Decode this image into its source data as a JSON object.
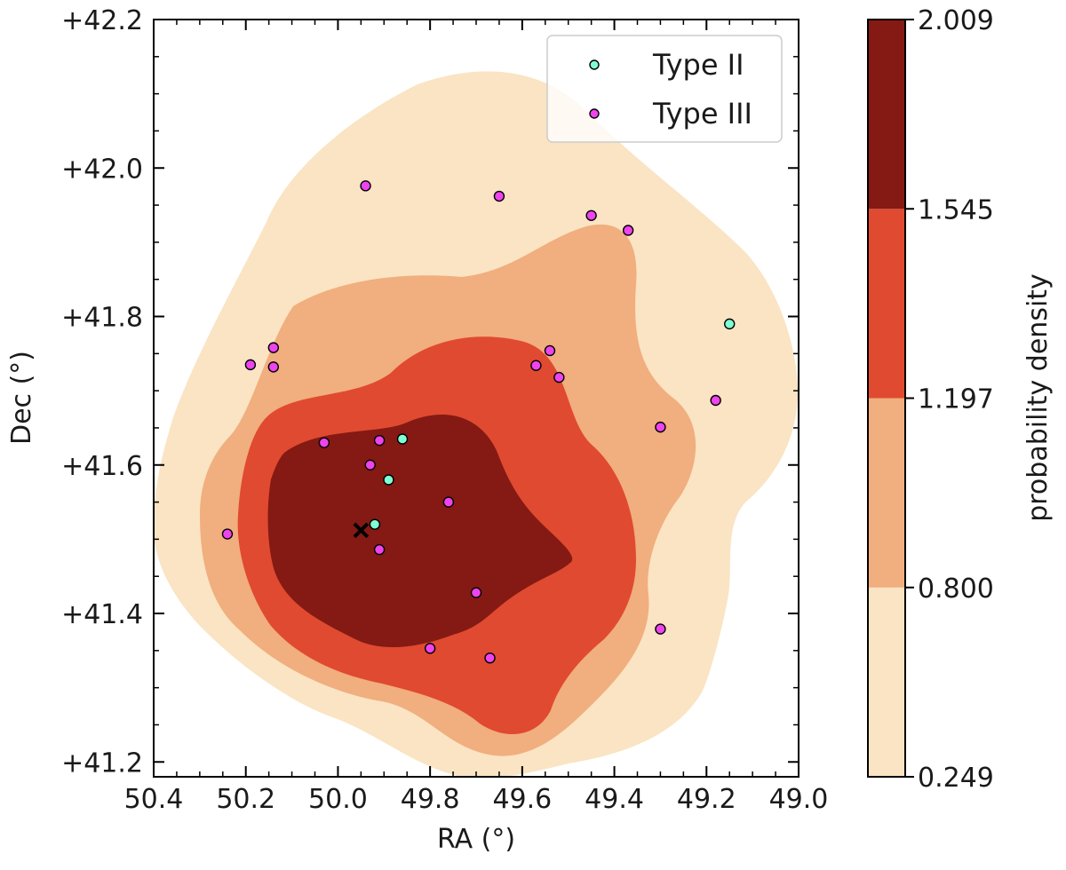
{
  "chart_data": {
    "type": "scatter",
    "subtype": "scatter-over-filled-density-contours",
    "xlabel": "RA (°)",
    "ylabel": "Dec (°)",
    "xlim": [
      50.4,
      49.0
    ],
    "ylim": [
      41.18,
      42.2
    ],
    "x_inverted": true,
    "x_ticks": [
      50.4,
      50.2,
      50.0,
      49.8,
      49.6,
      49.4,
      49.2,
      49.0
    ],
    "x_tick_labels": [
      "50.4",
      "50.2",
      "50.0",
      "49.8",
      "49.6",
      "49.4",
      "49.2",
      "49.0"
    ],
    "y_ticks": [
      41.2,
      41.4,
      41.6,
      41.8,
      42.0,
      42.2
    ],
    "y_tick_labels": [
      "+41.2",
      "+41.4",
      "+41.6",
      "+41.8",
      "+42.0",
      "+42.2"
    ],
    "legend_position": "top-right",
    "series": [
      {
        "name": "Type II",
        "color": "#7fffd4",
        "points": [
          {
            "x": 49.86,
            "y": 41.635
          },
          {
            "x": 49.89,
            "y": 41.58
          },
          {
            "x": 49.92,
            "y": 41.52
          },
          {
            "x": 49.15,
            "y": 41.79
          }
        ]
      },
      {
        "name": "Type III",
        "color": "#ee44ee",
        "points": [
          {
            "x": 49.94,
            "y": 41.976
          },
          {
            "x": 49.65,
            "y": 41.962
          },
          {
            "x": 49.45,
            "y": 41.936
          },
          {
            "x": 49.37,
            "y": 41.916
          },
          {
            "x": 50.14,
            "y": 41.758
          },
          {
            "x": 50.19,
            "y": 41.735
          },
          {
            "x": 50.14,
            "y": 41.732
          },
          {
            "x": 49.54,
            "y": 41.754
          },
          {
            "x": 49.57,
            "y": 41.734
          },
          {
            "x": 49.52,
            "y": 41.718
          },
          {
            "x": 49.18,
            "y": 41.687
          },
          {
            "x": 49.3,
            "y": 41.651
          },
          {
            "x": 50.03,
            "y": 41.63
          },
          {
            "x": 49.91,
            "y": 41.633
          },
          {
            "x": 49.93,
            "y": 41.6
          },
          {
            "x": 49.76,
            "y": 41.55
          },
          {
            "x": 50.24,
            "y": 41.507
          },
          {
            "x": 49.91,
            "y": 41.486
          },
          {
            "x": 49.7,
            "y": 41.428
          },
          {
            "x": 49.3,
            "y": 41.379
          },
          {
            "x": 49.8,
            "y": 41.353
          },
          {
            "x": 49.67,
            "y": 41.34
          }
        ]
      }
    ],
    "center_marker": {
      "x": 49.95,
      "y": 41.512,
      "symbol": "x",
      "color": "#000000"
    },
    "density_levels": [
      0.249,
      0.8,
      1.197,
      1.545,
      2.009
    ],
    "density_level_labels": [
      "0.249",
      "0.800",
      "1.197",
      "1.545",
      "2.009"
    ],
    "density_colors": [
      "#fae4c3",
      "#f1ae7e",
      "#e04a30",
      "#841a13"
    ],
    "colorbar_label": "probability density"
  }
}
